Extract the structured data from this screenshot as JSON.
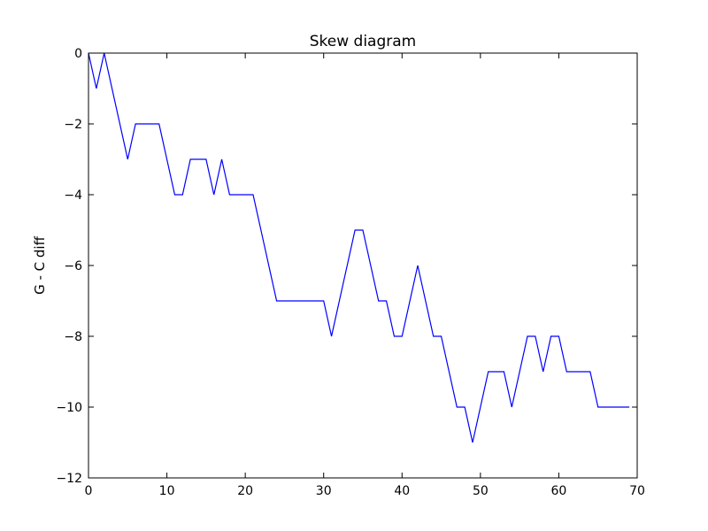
{
  "chart_data": {
    "type": "line",
    "title": "Skew diagram",
    "xlabel": "",
    "ylabel": "G - C diff",
    "xlim": [
      0,
      70
    ],
    "ylim": [
      -12,
      0
    ],
    "x_ticks": [
      0,
      10,
      20,
      30,
      40,
      50,
      60,
      70
    ],
    "y_ticks": [
      0,
      -2,
      -4,
      -6,
      -8,
      -10,
      -12
    ],
    "x_tick_labels": [
      "0",
      "10",
      "20",
      "30",
      "40",
      "50",
      "60",
      "70"
    ],
    "y_tick_labels": [
      "0",
      "−2",
      "−4",
      "−6",
      "−8",
      "−10",
      "−12"
    ],
    "grid": false,
    "series": [
      {
        "color": "#0000ff",
        "x": [
          0,
          1,
          2,
          3,
          4,
          5,
          6,
          7,
          8,
          9,
          10,
          11,
          12,
          13,
          14,
          15,
          16,
          17,
          18,
          19,
          20,
          21,
          22,
          23,
          24,
          25,
          26,
          27,
          28,
          29,
          30,
          31,
          32,
          33,
          34,
          35,
          36,
          37,
          38,
          39,
          40,
          41,
          42,
          43,
          44,
          45,
          46,
          47,
          48,
          49,
          50,
          51,
          52,
          53,
          54,
          55,
          56,
          57,
          58,
          59,
          60,
          61,
          62,
          63,
          64,
          65,
          66,
          67,
          68,
          69
        ],
        "values": [
          0,
          -1,
          0,
          -1,
          -2,
          -3,
          -2,
          -2,
          -2,
          -2,
          -3,
          -4,
          -4,
          -3,
          -3,
          -3,
          -4,
          -3,
          -4,
          -4,
          -4,
          -4,
          -5,
          -6,
          -7,
          -7,
          -7,
          -7,
          -7,
          -7,
          -7,
          -8,
          -7,
          -6,
          -5,
          -5,
          -6,
          -7,
          -7,
          -8,
          -8,
          -7,
          -6,
          -7,
          -8,
          -8,
          -9,
          -10,
          -10,
          -11,
          -10,
          -9,
          -9,
          -9,
          -10,
          -9,
          -8,
          -8,
          -9,
          -8,
          -8,
          -9,
          -9,
          -9,
          -9,
          -10,
          -10,
          -10,
          -10,
          -10
        ]
      }
    ]
  }
}
